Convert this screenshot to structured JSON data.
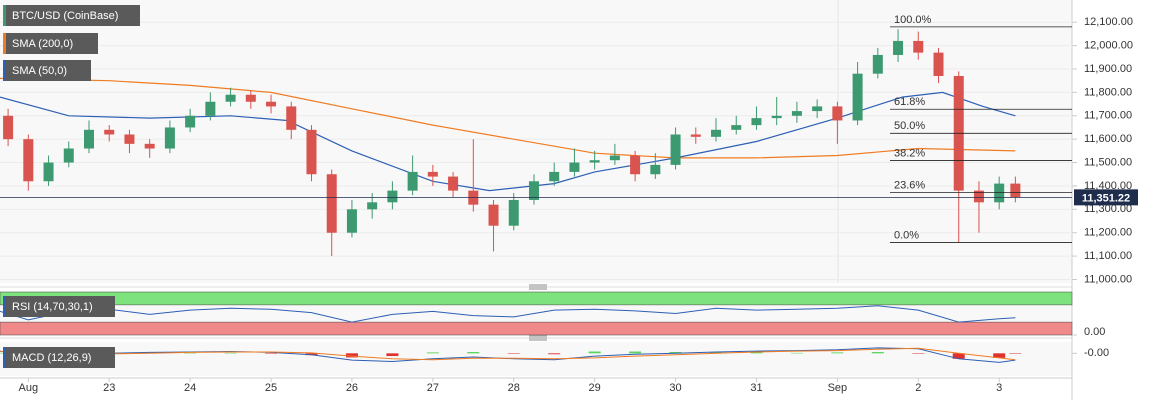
{
  "chart_data": [
    {
      "type": "candlestick",
      "name": "BTC/USD (CoinBase)",
      "up_color": "#3d9970",
      "down_color": "#d9534f",
      "x": [
        -0.25,
        0,
        0.25,
        0.5,
        0.75,
        1,
        1.25,
        1.5,
        1.75,
        2,
        2.25,
        2.5,
        2.75,
        3,
        3.25,
        3.5,
        3.75,
        4,
        4.25,
        4.5,
        4.75,
        5,
        5.25,
        5.5,
        5.75,
        6,
        6.25,
        6.5,
        6.75,
        7,
        7.25,
        7.5,
        7.75,
        8,
        8.25,
        8.5,
        8.75,
        9,
        9.25,
        9.5,
        9.75,
        10,
        10.25,
        10.5,
        10.75,
        11,
        11.25,
        11.5,
        11.75,
        12,
        12.2
      ],
      "open": [
        11700,
        11600,
        11420,
        11500,
        11560,
        11640,
        11620,
        11580,
        11560,
        11650,
        11700,
        11760,
        11790,
        11760,
        11740,
        11640,
        11450,
        11200,
        11300,
        11330,
        11380,
        11460,
        11440,
        11380,
        11320,
        11230,
        11340,
        11420,
        11460,
        11500,
        11510,
        11530,
        11450,
        11490,
        11620,
        11610,
        11640,
        11660,
        11690,
        11700,
        11720,
        11740,
        11680,
        11880,
        11960,
        12020,
        11970,
        11870,
        11380,
        11330,
        11410
      ],
      "high": [
        11730,
        11620,
        11530,
        11590,
        11680,
        11660,
        11640,
        11600,
        11680,
        11730,
        11800,
        11820,
        11810,
        11790,
        11760,
        11660,
        11470,
        11340,
        11370,
        11420,
        11530,
        11490,
        11460,
        11600,
        11340,
        11370,
        11450,
        11500,
        11560,
        11550,
        11580,
        11550,
        11540,
        11650,
        11650,
        11690,
        11700,
        11740,
        11780,
        11760,
        11770,
        11760,
        11930,
        11990,
        12070,
        12060,
        11990,
        11890,
        11420,
        11440,
        11440
      ],
      "low": [
        11570,
        11380,
        11400,
        11480,
        11540,
        11590,
        11540,
        11520,
        11540,
        11630,
        11680,
        11740,
        11730,
        11710,
        11600,
        11420,
        11100,
        11180,
        11260,
        11300,
        11360,
        11400,
        11350,
        11290,
        11120,
        11210,
        11320,
        11400,
        11440,
        11470,
        11490,
        11420,
        11430,
        11470,
        11580,
        11590,
        11620,
        11640,
        11660,
        11670,
        11690,
        11580,
        11660,
        11860,
        11930,
        11940,
        11840,
        11160,
        11200,
        11300,
        11330
      ],
      "close": [
        11600,
        11420,
        11500,
        11560,
        11640,
        11620,
        11580,
        11560,
        11650,
        11700,
        11760,
        11790,
        11760,
        11740,
        11640,
        11450,
        11200,
        11300,
        11330,
        11380,
        11460,
        11440,
        11380,
        11320,
        11230,
        11340,
        11420,
        11460,
        11500,
        11510,
        11530,
        11450,
        11490,
        11620,
        11610,
        11640,
        11660,
        11690,
        11700,
        11720,
        11740,
        11680,
        11880,
        11960,
        12020,
        11970,
        11870,
        11380,
        11330,
        11410,
        11351
      ],
      "series": [
        {
          "name": "SMA (200,0)",
          "color": "#f07b21",
          "x": [
            -0.35,
            1,
            2,
            3,
            4,
            5,
            6,
            7,
            8,
            9,
            10,
            11,
            12.2
          ],
          "values": [
            11860,
            11850,
            11830,
            11800,
            11730,
            11660,
            11600,
            11540,
            11520,
            11520,
            11530,
            11560,
            11550
          ]
        },
        {
          "name": "SMA (50,0)",
          "color": "#2d5fb5",
          "x": [
            -0.35,
            0.5,
            1.5,
            2.5,
            3.2,
            4,
            5,
            5.7,
            6.5,
            7,
            8,
            9,
            10,
            10.8,
            11.3,
            11.8,
            12.2
          ],
          "values": [
            11780,
            11700,
            11690,
            11700,
            11680,
            11550,
            11420,
            11380,
            11410,
            11460,
            11520,
            11590,
            11690,
            11780,
            11800,
            11740,
            11700
          ]
        }
      ],
      "xlim": [
        -0.35,
        12.9
      ],
      "xticks": [
        {
          "value": 0,
          "label": "Aug"
        },
        {
          "value": 1,
          "label": "23"
        },
        {
          "value": 2,
          "label": "24"
        },
        {
          "value": 3,
          "label": "25"
        },
        {
          "value": 4,
          "label": "26"
        },
        {
          "value": 5,
          "label": "27"
        },
        {
          "value": 6,
          "label": "28"
        },
        {
          "value": 7,
          "label": "29"
        },
        {
          "value": 8,
          "label": "30"
        },
        {
          "value": 9,
          "label": "31"
        },
        {
          "value": 10,
          "label": "Sep"
        },
        {
          "value": 11,
          "label": "2"
        },
        {
          "value": 12,
          "label": "3"
        }
      ],
      "ylim": [
        10985,
        12195
      ],
      "yticks": [
        {
          "value": 11000,
          "label": "11,000.00"
        },
        {
          "value": 11100,
          "label": "11,100.00"
        },
        {
          "value": 11200,
          "label": "11,200.00"
        },
        {
          "value": 11300,
          "label": "11,300.00"
        },
        {
          "value": 11400,
          "label": "11,400.00"
        },
        {
          "value": 11500,
          "label": "11,500.00"
        },
        {
          "value": 11600,
          "label": "11,600.00"
        },
        {
          "value": 11700,
          "label": "11,700.00"
        },
        {
          "value": 11800,
          "label": "11,800.00"
        },
        {
          "value": 11900,
          "label": "11,900.00"
        },
        {
          "value": 12000,
          "label": "12,000.00"
        },
        {
          "value": 12100,
          "label": "12,100.00"
        }
      ],
      "grid": true,
      "fib_levels": [
        {
          "value": 12080,
          "label": "100.0%"
        },
        {
          "value": 11728,
          "label": "61.8%"
        },
        {
          "value": 11625,
          "label": "50.0%"
        },
        {
          "value": 11509,
          "label": "38.2%"
        },
        {
          "value": 11372,
          "label": "23.6%"
        },
        {
          "value": 11158,
          "label": "0.0%"
        }
      ],
      "last_price": {
        "value": 11351.22,
        "label": "11,351.22"
      }
    },
    {
      "type": "line",
      "name": "RSI (14,70,30,1)",
      "color": "#2d5fb5",
      "overbought": 70,
      "oversold": 30,
      "overbought_color": "#7ee27e",
      "oversold_color": "#f08a8a",
      "x": [
        -0.35,
        0,
        0.5,
        1,
        1.5,
        2,
        2.5,
        3,
        3.5,
        4,
        4.5,
        5,
        5.5,
        6,
        6.5,
        7,
        7.5,
        8,
        8.5,
        9,
        9.5,
        10,
        10.5,
        11,
        11.5,
        12,
        12.2
      ],
      "values": [
        55,
        35,
        55,
        60,
        48,
        58,
        62,
        60,
        52,
        30,
        48,
        55,
        45,
        42,
        58,
        60,
        56,
        50,
        62,
        58,
        60,
        62,
        68,
        58,
        30,
        38,
        40
      ],
      "ylim": [
        0,
        100
      ],
      "yticks": [
        {
          "value": 0,
          "label": "0.00"
        }
      ]
    },
    {
      "type": "macd",
      "name": "MACD (12,26,9)",
      "macd_color": "#2d5fb5",
      "signal_color": "#f07b21",
      "up_color": "#5cd65c",
      "down_color": "#e03030",
      "x": [
        -0.35,
        0,
        0.5,
        1,
        1.5,
        2,
        2.5,
        3,
        3.5,
        4,
        4.5,
        5,
        5.5,
        6,
        6.5,
        7,
        7.5,
        8,
        8.5,
        9,
        9.5,
        10,
        10.5,
        11,
        11.5,
        12,
        12.2
      ],
      "macd": [
        5,
        -5,
        -2,
        0,
        2,
        3,
        4,
        2,
        -3,
        -15,
        -18,
        -12,
        -8,
        -12,
        -14,
        -6,
        -2,
        0,
        3,
        5,
        6,
        8,
        12,
        10,
        -12,
        -20,
        -15
      ],
      "signal": [
        4,
        0,
        -2,
        -1,
        0,
        2,
        3,
        3,
        1,
        -6,
        -12,
        -14,
        -11,
        -11,
        -12,
        -10,
        -6,
        -3,
        0,
        3,
        5,
        6,
        9,
        11,
        0,
        -10,
        -14
      ],
      "histogram": [
        1,
        -5,
        0,
        1,
        2,
        1,
        1,
        -1,
        -4,
        -9,
        -6,
        2,
        3,
        -1,
        -2,
        4,
        4,
        3,
        3,
        2,
        1,
        2,
        3,
        -1,
        -12,
        -10,
        -1
      ],
      "ylim": [
        -50,
        25
      ],
      "yticks": [
        {
          "value": 0,
          "label": "-0.00"
        }
      ]
    }
  ]
}
